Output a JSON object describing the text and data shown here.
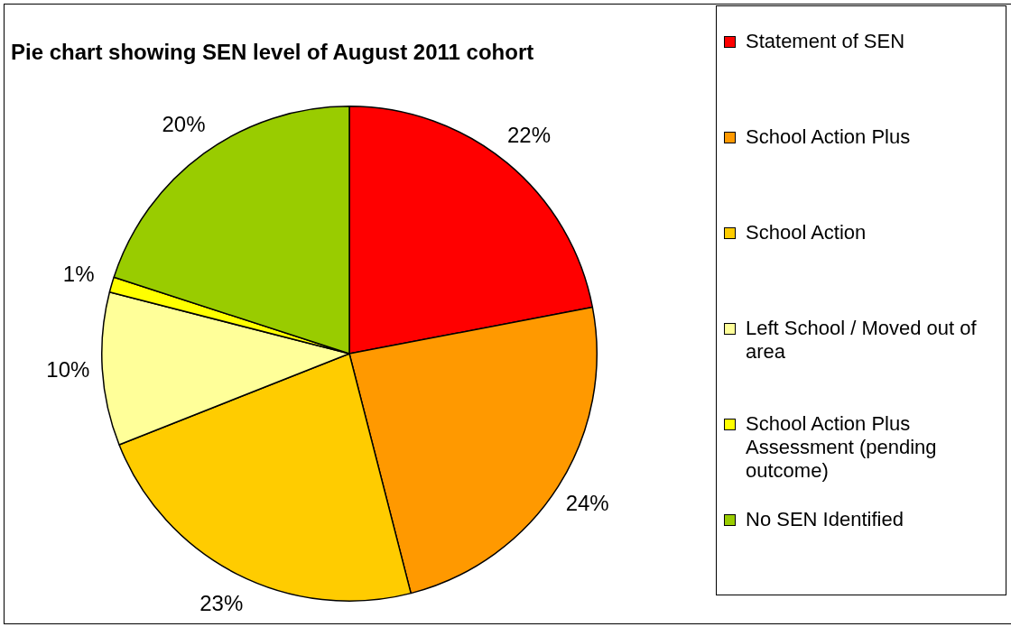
{
  "chart_data": {
    "type": "pie",
    "title": "Pie chart showing SEN level of August 2011 cohort",
    "categories": [
      "Statement of SEN",
      "School Action Plus",
      "School Action",
      "Left School / Moved out of area",
      "School Action Plus Assessment (pending outcome)",
      "No SEN Identified"
    ],
    "values": [
      22,
      24,
      23,
      10,
      1,
      20
    ],
    "value_labels": [
      "22%",
      "24%",
      "23%",
      "10%",
      "1%",
      "20%"
    ],
    "colors": [
      "#ff0000",
      "#ff9900",
      "#ffcc00",
      "#ffff99",
      "#ffff00",
      "#99cc00"
    ],
    "legend": "right"
  }
}
